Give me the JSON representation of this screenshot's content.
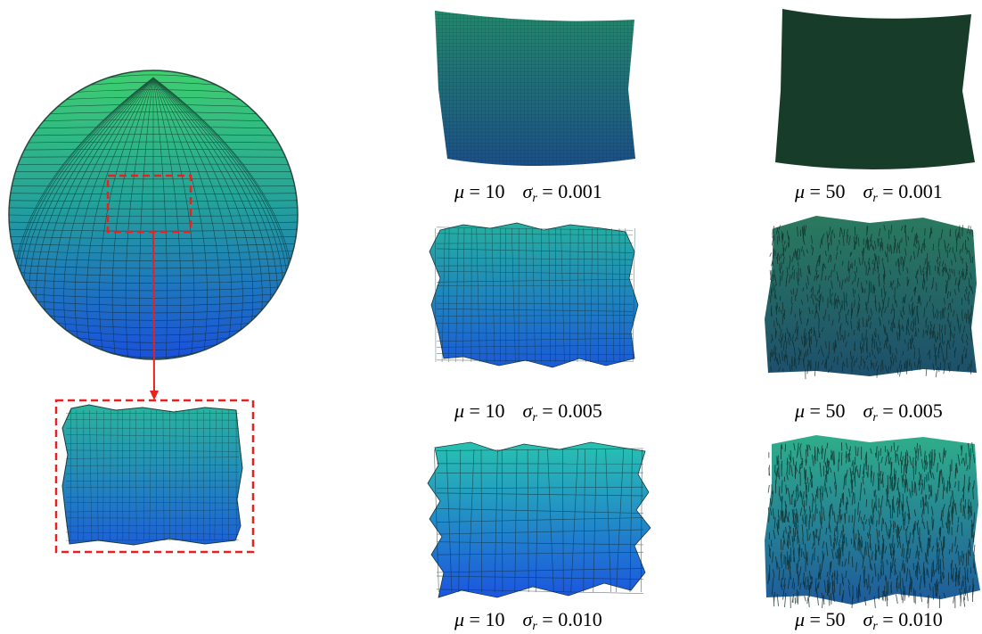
{
  "colors": {
    "highlight_box": "#e82020",
    "mesh_top": "#35c678",
    "mesh_mid": "#1f9aa0",
    "mesh_bottom": "#1a55d8",
    "dense_patch": "#173d2a"
  },
  "symbols": {
    "mu": "μ",
    "sigma": "σ",
    "sub": "r",
    "eq": " = "
  },
  "panels": [
    {
      "mu": "10",
      "sigma": "0.001"
    },
    {
      "mu": "50",
      "sigma": "0.001"
    },
    {
      "mu": "10",
      "sigma": "0.005"
    },
    {
      "mu": "50",
      "sigma": "0.005"
    },
    {
      "mu": "10",
      "sigma": "0.010"
    },
    {
      "mu": "50",
      "sigma": "0.010"
    }
  ]
}
